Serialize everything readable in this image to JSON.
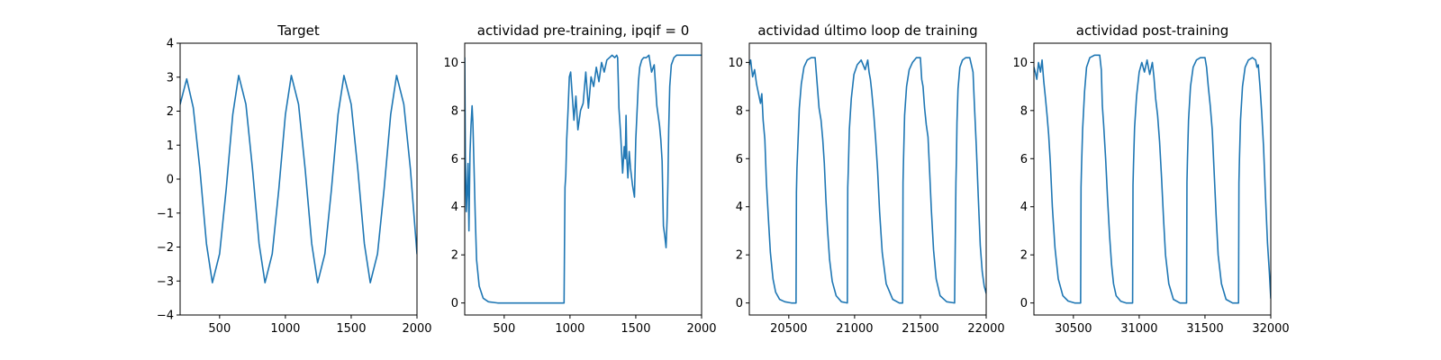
{
  "colors": {
    "line": "#1f77b4",
    "axes": "#000000",
    "background": "#ffffff"
  },
  "chart_data": [
    {
      "type": "line",
      "title": "Target",
      "xlim": [
        200,
        2000
      ],
      "ylim": [
        -4,
        4
      ],
      "xticks": [
        500,
        1000,
        1500,
        2000
      ],
      "yticks": [
        -4,
        -3,
        -2,
        -1,
        0,
        1,
        2,
        3,
        4
      ],
      "series": [
        {
          "x": [
            200,
            250,
            300,
            350,
            400,
            445,
            500,
            550,
            600,
            645,
            700,
            750,
            800,
            845,
            900,
            950,
            1000,
            1045,
            1100,
            1150,
            1200,
            1245,
            1300,
            1350,
            1400,
            1445,
            1500,
            1550,
            1600,
            1645,
            1700,
            1750,
            1800,
            1845,
            1900,
            1950,
            2000
          ],
          "y": [
            2.2,
            2.95,
            2.1,
            0.3,
            -1.9,
            -3.05,
            -2.2,
            -0.3,
            1.9,
            3.05,
            2.2,
            0.3,
            -1.9,
            -3.05,
            -2.2,
            -0.3,
            1.9,
            3.05,
            2.2,
            0.3,
            -1.9,
            -3.05,
            -2.2,
            -0.3,
            1.9,
            3.05,
            2.2,
            0.3,
            -1.9,
            -3.05,
            -2.2,
            -0.3,
            1.9,
            3.05,
            2.2,
            0.3,
            -2.2
          ]
        }
      ]
    },
    {
      "type": "line",
      "title": "actividad pre-training, ipqif = 0",
      "xlim": [
        200,
        2000
      ],
      "ylim": [
        -0.5,
        10.8
      ],
      "xticks": [
        500,
        1000,
        1500,
        2000
      ],
      "yticks": [
        0,
        2,
        4,
        6,
        8,
        10
      ],
      "series": [
        {
          "x": [
            200,
            205,
            212,
            218,
            225,
            232,
            240,
            248,
            256,
            262,
            270,
            280,
            290,
            310,
            340,
            380,
            450,
            600,
            800,
            955,
            958,
            962,
            968,
            975,
            985,
            995,
            1005,
            1015,
            1030,
            1045,
            1060,
            1080,
            1100,
            1120,
            1140,
            1160,
            1180,
            1200,
            1220,
            1240,
            1260,
            1280,
            1300,
            1320,
            1340,
            1355,
            1362,
            1368,
            1372,
            1385,
            1400,
            1412,
            1420,
            1426,
            1432,
            1440,
            1450,
            1460,
            1475,
            1490,
            1500,
            1510,
            1520,
            1530,
            1545,
            1560,
            1580,
            1600,
            1620,
            1640,
            1660,
            1680,
            1690,
            1700,
            1710,
            1720,
            1730,
            1738,
            1744,
            1750,
            1758,
            1770,
            1790,
            1810,
            1840,
            1880,
            1940,
            2000
          ],
          "y": [
            10.2,
            6.0,
            3.8,
            4.6,
            5.8,
            3.0,
            6.2,
            7.4,
            8.2,
            7.5,
            5.8,
            3.6,
            1.8,
            0.7,
            0.2,
            0.05,
            0,
            0,
            0,
            0,
            2.2,
            4.8,
            5.3,
            6.8,
            8.0,
            9.4,
            9.6,
            8.8,
            7.6,
            8.6,
            7.2,
            8.0,
            8.3,
            9.6,
            8.1,
            9.4,
            9.0,
            9.8,
            9.2,
            10.0,
            9.6,
            10.1,
            10.2,
            10.3,
            10.2,
            10.3,
            10.2,
            9.0,
            8.1,
            7.0,
            5.4,
            6.5,
            6.0,
            7.8,
            6.0,
            5.2,
            6.3,
            5.6,
            4.9,
            4.4,
            6.8,
            8.0,
            9.2,
            9.8,
            10.1,
            10.2,
            10.2,
            10.3,
            9.6,
            9.9,
            8.2,
            7.4,
            6.8,
            5.9,
            3.2,
            2.8,
            2.3,
            3.5,
            5.0,
            7.2,
            9.0,
            9.9,
            10.2,
            10.3,
            10.3,
            10.3,
            10.3,
            10.3
          ]
        }
      ]
    },
    {
      "type": "line",
      "title": "actividad último loop de training",
      "xlim": [
        20200,
        22000
      ],
      "ylim": [
        -0.5,
        10.8
      ],
      "xticks": [
        20500,
        21000,
        21500,
        22000
      ],
      "yticks": [
        0,
        2,
        4,
        6,
        8,
        10
      ],
      "series": [
        {
          "x": [
            20200,
            20210,
            20225,
            20240,
            20255,
            20270,
            20285,
            20295,
            20305,
            20318,
            20330,
            20345,
            20360,
            20380,
            20400,
            20430,
            20470,
            20520,
            20555,
            20558,
            20562,
            20570,
            20580,
            20595,
            20615,
            20640,
            20670,
            20700,
            20710,
            20720,
            20730,
            20745,
            20758,
            20770,
            20782,
            20795,
            20810,
            20830,
            20860,
            20900,
            20945,
            20948,
            20952,
            20960,
            20975,
            20995,
            21020,
            21050,
            21080,
            21100,
            21110,
            21120,
            21130,
            21145,
            21160,
            21175,
            21190,
            21210,
            21240,
            21290,
            21340,
            21365,
            21368,
            21372,
            21380,
            21395,
            21415,
            21440,
            21470,
            21500,
            21510,
            21520,
            21532,
            21545,
            21558,
            21570,
            21583,
            21600,
            21620,
            21650,
            21700,
            21760,
            21770,
            21774,
            21778,
            21786,
            21800,
            21820,
            21845,
            21875,
            21900,
            21910,
            21925,
            21940,
            21955,
            21970,
            21985,
            22000
          ],
          "y": [
            9.9,
            10.1,
            9.4,
            9.7,
            9.1,
            8.7,
            8.3,
            8.7,
            7.6,
            6.8,
            5.0,
            3.5,
            2.1,
            1.0,
            0.45,
            0.15,
            0.05,
            0,
            0,
            4.6,
            5.6,
            6.7,
            8.1,
            9.1,
            9.8,
            10.1,
            10.2,
            10.2,
            9.5,
            8.8,
            8.1,
            7.6,
            6.8,
            5.8,
            4.3,
            3.0,
            1.8,
            0.9,
            0.3,
            0.05,
            0,
            4.8,
            5.5,
            7.2,
            8.5,
            9.5,
            9.9,
            10.1,
            9.7,
            10.1,
            9.6,
            9.3,
            8.8,
            7.9,
            6.8,
            5.5,
            3.8,
            2.1,
            0.8,
            0.15,
            0,
            0,
            5.0,
            6.0,
            7.8,
            9.0,
            9.7,
            10.0,
            10.2,
            10.2,
            9.3,
            9.0,
            8.1,
            7.4,
            6.9,
            5.5,
            3.9,
            2.2,
            1.0,
            0.3,
            0.05,
            0,
            5.0,
            6.0,
            7.5,
            8.9,
            9.8,
            10.1,
            10.2,
            10.2,
            9.6,
            8.3,
            6.5,
            4.4,
            2.4,
            1.3,
            0.7,
            0.4
          ]
        }
      ]
    },
    {
      "type": "line",
      "title": "actividad post-training",
      "xlim": [
        30200,
        32000
      ],
      "ylim": [
        -0.5,
        10.8
      ],
      "xticks": [
        30500,
        31000,
        31500,
        32000
      ],
      "yticks": [
        0,
        2,
        4,
        6,
        8,
        10
      ],
      "series": [
        {
          "x": [
            30200,
            30210,
            30222,
            30235,
            30250,
            30262,
            30275,
            30288,
            30300,
            30312,
            30325,
            30340,
            30360,
            30385,
            30420,
            30460,
            30510,
            30555,
            30558,
            30562,
            30570,
            30585,
            30600,
            30625,
            30660,
            30700,
            30712,
            30720,
            30730,
            30745,
            30760,
            30775,
            30790,
            30805,
            30825,
            30860,
            30900,
            30950,
            30953,
            30957,
            30965,
            30980,
            31000,
            31020,
            31040,
            31060,
            31080,
            31100,
            31112,
            31125,
            31140,
            31155,
            31170,
            31185,
            31200,
            31225,
            31260,
            31310,
            31360,
            31363,
            31367,
            31375,
            31390,
            31410,
            31435,
            31465,
            31500,
            31512,
            31525,
            31540,
            31555,
            31570,
            31585,
            31600,
            31625,
            31660,
            31710,
            31755,
            31758,
            31762,
            31770,
            31785,
            31805,
            31830,
            31860,
            31885,
            31895,
            31905,
            31918,
            31930,
            31945,
            31960,
            31975,
            31990,
            32000
          ],
          "y": [
            9.8,
            9.6,
            9.3,
            10.0,
            9.6,
            10.1,
            9.2,
            8.5,
            7.8,
            7.0,
            5.8,
            4.0,
            2.3,
            1.0,
            0.3,
            0.08,
            0,
            0,
            4.8,
            5.7,
            7.2,
            8.8,
            9.8,
            10.2,
            10.3,
            10.3,
            9.7,
            8.2,
            7.4,
            6.0,
            4.3,
            2.8,
            1.6,
            0.8,
            0.3,
            0.07,
            0,
            0,
            4.9,
            5.8,
            7.3,
            8.6,
            9.6,
            10.0,
            9.6,
            10.1,
            9.5,
            10.0,
            9.4,
            8.5,
            7.8,
            6.7,
            5.2,
            3.5,
            2.0,
            0.8,
            0.15,
            0,
            0,
            5.0,
            6.0,
            7.6,
            9.0,
            9.8,
            10.1,
            10.2,
            10.2,
            9.8,
            9.0,
            8.2,
            7.2,
            5.4,
            3.6,
            2.0,
            0.8,
            0.15,
            0,
            0,
            5.0,
            6.0,
            7.6,
            9.0,
            9.8,
            10.1,
            10.2,
            10.1,
            9.8,
            9.9,
            9.0,
            8.0,
            6.5,
            4.4,
            2.5,
            1.2,
            0.2
          ]
        }
      ]
    }
  ]
}
